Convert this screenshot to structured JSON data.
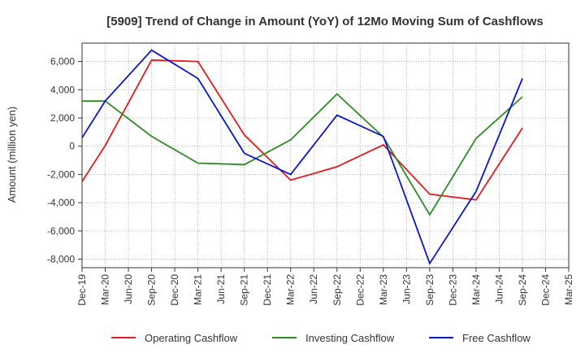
{
  "chart_data": {
    "type": "line",
    "title": "[5909]  Trend of Change in Amount (YoY) of 12Mo Moving Sum of Cashflows",
    "xlabel": "",
    "ylabel": "Amount (million yen)",
    "ylim": [
      -8600,
      7300
    ],
    "yticks": [
      6000,
      4000,
      2000,
      0,
      -2000,
      -4000,
      -6000,
      -8000
    ],
    "ytick_labels": [
      "6,000",
      "4,000",
      "2,000",
      "0",
      "-2,000",
      "-4,000",
      "-6,000",
      "-8,000"
    ],
    "categories": [
      "Dec-19",
      "Mar-20",
      "Jun-20",
      "Sep-20",
      "Dec-20",
      "Mar-21",
      "Jun-21",
      "Sep-21",
      "Dec-21",
      "Mar-22",
      "Jun-22",
      "Sep-22",
      "Dec-22",
      "Mar-23",
      "Jun-23",
      "Sep-23",
      "Dec-23",
      "Mar-24",
      "Jun-24",
      "Sep-24",
      "Dec-24",
      "Mar-25"
    ],
    "grid": true,
    "legend_position": "bottom",
    "series": [
      {
        "name": "Operating Cashflow",
        "color": "#e41a1c",
        "values": [
          -2500,
          50,
          null,
          6100,
          null,
          6000,
          null,
          800,
          null,
          -2400,
          null,
          -1450,
          null,
          100,
          null,
          -3400,
          null,
          -3800,
          null,
          1300,
          null,
          null
        ]
      },
      {
        "name": "Investing Cashflow",
        "color": "#2e8b22",
        "values": [
          3200,
          3200,
          null,
          700,
          null,
          -1200,
          null,
          -1300,
          null,
          450,
          null,
          3700,
          null,
          650,
          null,
          -4850,
          null,
          550,
          null,
          3500,
          null,
          null
        ]
      },
      {
        "name": "Free Cashflow",
        "color": "#0a14d0",
        "values": [
          600,
          3200,
          null,
          6800,
          null,
          4800,
          null,
          -500,
          null,
          -2000,
          null,
          2200,
          null,
          700,
          null,
          -8300,
          null,
          -3200,
          null,
          4800,
          null,
          null
        ]
      }
    ]
  }
}
